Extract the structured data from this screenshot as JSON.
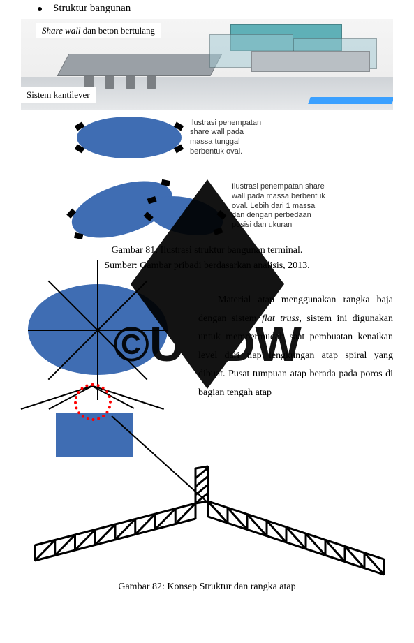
{
  "bullet": {
    "text": "Struktur bangunan"
  },
  "labels": {
    "share_wall_prefix_italic": "Share wall",
    "share_wall_rest": " dan beton bertulang",
    "cantilever": "Sistem kantilever"
  },
  "render": {
    "bg_top": "#f5f5f5",
    "bg_bottom": "#eaeaea",
    "teal": "#5fb0b7",
    "glass": "rgba(160,200,210,0.5)",
    "pillar": "#7b7f83",
    "stripe": "#3aa0ff"
  },
  "oval1": {
    "fill": "#3f6db3",
    "width": 150,
    "height": 60,
    "caption_l1": "Ilustrasi penempatan",
    "caption_l2": "share wall pada",
    "caption_l3": "massa tunggal",
    "caption_l4": "berbentuk oval."
  },
  "oval2": {
    "fill": "#3f6db3",
    "w1": 150,
    "h1": 70,
    "rot1": -18,
    "w2": 110,
    "h2": 52,
    "rot2": 12,
    "caption_l1": "Ilustrasi penempatan share",
    "caption_l2": "wall pada massa berbentuk",
    "caption_l3": "oval. Lebih dari 1 massa",
    "caption_l4": "dan dengan perbedaan",
    "caption_l5": "posisi dan ukuran"
  },
  "fig81": {
    "title": "Gambar 81: Ilustrasi struktur bangunan terminal.",
    "source": "Sumber: Gambar pribadi berdasarkan analisis, 2013."
  },
  "roof": {
    "circle_fill": "#3f6db3",
    "segments": 8,
    "elev_box_fill": "#3f6db3",
    "dashed_color": "#ff0000"
  },
  "paragraph": {
    "p1": "Material atap menggunakan rangka baja dengan sistem ",
    "italic": "flat truss",
    "p2": ", sistem ini digunakan untuk mempermudah saat pembuatan kenaikan level dari tiap lengkungan atap spiral yang dibuat. Pusat tumpuan atap berada pada poros di bagian tengah atap"
  },
  "truss": {
    "stroke": "#000000",
    "stroke_width": 3
  },
  "fig82": {
    "title": "Gambar 82: Konsep Struktur dan rangka atap"
  },
  "watermark": {
    "text": "©UKDW",
    "fill": "#000000",
    "fontsize": 70
  }
}
